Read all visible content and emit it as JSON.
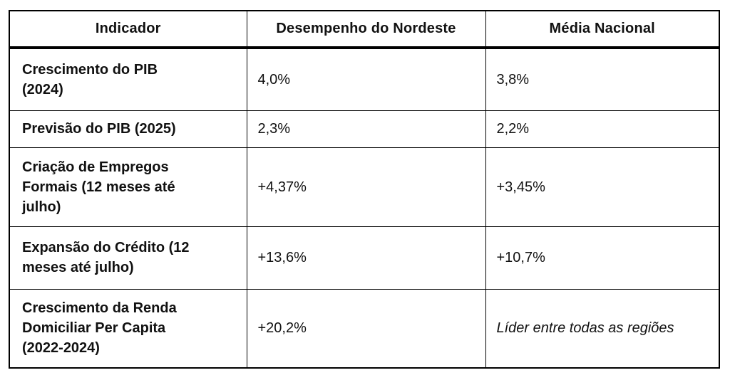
{
  "table": {
    "header": [
      "Indicador",
      "Desempenho do Nordeste",
      "Média Nacional"
    ],
    "rows": [
      [
        "Crescimento do PIB (2024)",
        "4,0%",
        "3,8%"
      ],
      [
        "Previsão do PIB (2025)",
        "2,3%",
        "2,2%"
      ],
      [
        "Criação de Empregos Formais (12 meses até julho)",
        "+4,37%",
        "+3,45%"
      ],
      [
        "Expansão do Crédito (12 meses até julho)",
        "+13,6%",
        "+10,7%"
      ],
      [
        "Crescimento da Renda Domiciliar Per Capita (2022-2024)",
        "+20,2%",
        "Líder entre todas as regiões"
      ]
    ],
    "colors": {
      "border": "#000000",
      "text": "#111111",
      "background": "#ffffff"
    }
  }
}
